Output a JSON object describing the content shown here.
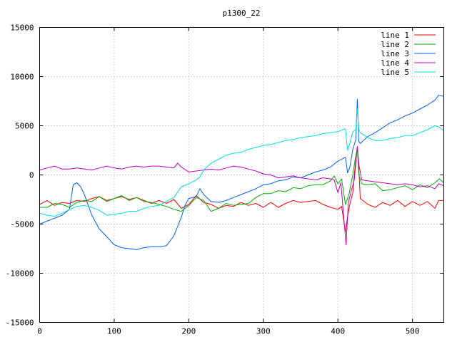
{
  "chart_data": {
    "type": "line",
    "title": "p1300_22",
    "xlabel": "",
    "ylabel": "",
    "xlim": [
      0,
      542
    ],
    "ylim": [
      -15000,
      15000
    ],
    "xticks": [
      0,
      100,
      200,
      300,
      400,
      500
    ],
    "yticks": [
      -15000,
      -10000,
      -5000,
      0,
      5000,
      10000,
      15000
    ],
    "grid": true,
    "legend_position": "top-right",
    "series": [
      {
        "name": "line 1",
        "color": "#ff0000",
        "points": [
          [
            0,
            -3000
          ],
          [
            10,
            -2600
          ],
          [
            20,
            -3100
          ],
          [
            30,
            -2800
          ],
          [
            40,
            -2900
          ],
          [
            50,
            -2600
          ],
          [
            60,
            -2700
          ],
          [
            70,
            -2400
          ],
          [
            80,
            -2200
          ],
          [
            90,
            -2600
          ],
          [
            100,
            -2400
          ],
          [
            110,
            -2200
          ],
          [
            120,
            -2500
          ],
          [
            130,
            -2300
          ],
          [
            140,
            -2600
          ],
          [
            150,
            -2900
          ],
          [
            160,
            -2600
          ],
          [
            170,
            -2900
          ],
          [
            180,
            -2500
          ],
          [
            190,
            -3400
          ],
          [
            200,
            -3000
          ],
          [
            210,
            -2100
          ],
          [
            220,
            -2800
          ],
          [
            230,
            -3000
          ],
          [
            240,
            -3400
          ],
          [
            250,
            -3100
          ],
          [
            260,
            -3200
          ],
          [
            270,
            -2800
          ],
          [
            280,
            -3100
          ],
          [
            290,
            -2900
          ],
          [
            300,
            -3300
          ],
          [
            310,
            -2800
          ],
          [
            320,
            -3300
          ],
          [
            330,
            -2900
          ],
          [
            340,
            -2600
          ],
          [
            350,
            -2800
          ],
          [
            360,
            -2700
          ],
          [
            370,
            -2600
          ],
          [
            380,
            -3000
          ],
          [
            390,
            -3300
          ],
          [
            400,
            -3500
          ],
          [
            405,
            -3200
          ],
          [
            410,
            -5800
          ],
          [
            413,
            -4200
          ],
          [
            416,
            -3000
          ],
          [
            420,
            -1800
          ],
          [
            423,
            800
          ],
          [
            426,
            2800
          ],
          [
            428,
            700
          ],
          [
            430,
            -2400
          ],
          [
            440,
            -3000
          ],
          [
            450,
            -3300
          ],
          [
            460,
            -2800
          ],
          [
            470,
            -3100
          ],
          [
            480,
            -2600
          ],
          [
            490,
            -3200
          ],
          [
            500,
            -2700
          ],
          [
            510,
            -3100
          ],
          [
            520,
            -2700
          ],
          [
            530,
            -3400
          ],
          [
            535,
            -2600
          ],
          [
            542,
            -2600
          ]
        ]
      },
      {
        "name": "line 2",
        "color": "#00b000",
        "points": [
          [
            0,
            -3300
          ],
          [
            10,
            -3300
          ],
          [
            20,
            -2900
          ],
          [
            30,
            -3000
          ],
          [
            40,
            -3300
          ],
          [
            50,
            -2800
          ],
          [
            60,
            -2600
          ],
          [
            70,
            -2700
          ],
          [
            80,
            -2200
          ],
          [
            90,
            -2700
          ],
          [
            100,
            -2400
          ],
          [
            110,
            -2100
          ],
          [
            120,
            -2600
          ],
          [
            130,
            -2300
          ],
          [
            140,
            -2700
          ],
          [
            150,
            -2800
          ],
          [
            160,
            -3000
          ],
          [
            170,
            -3200
          ],
          [
            180,
            -3500
          ],
          [
            190,
            -3700
          ],
          [
            200,
            -3100
          ],
          [
            210,
            -2300
          ],
          [
            220,
            -2600
          ],
          [
            230,
            -3700
          ],
          [
            240,
            -3400
          ],
          [
            250,
            -2900
          ],
          [
            260,
            -3100
          ],
          [
            270,
            -3000
          ],
          [
            280,
            -2900
          ],
          [
            290,
            -2300
          ],
          [
            300,
            -1900
          ],
          [
            310,
            -1900
          ],
          [
            320,
            -1600
          ],
          [
            330,
            -1700
          ],
          [
            340,
            -1300
          ],
          [
            350,
            -1400
          ],
          [
            360,
            -1100
          ],
          [
            370,
            -1000
          ],
          [
            380,
            -1000
          ],
          [
            390,
            -600
          ],
          [
            395,
            -100
          ],
          [
            400,
            -900
          ],
          [
            405,
            -400
          ],
          [
            410,
            -3000
          ],
          [
            415,
            -1900
          ],
          [
            420,
            0
          ],
          [
            423,
            1500
          ],
          [
            426,
            2700
          ],
          [
            428,
            0
          ],
          [
            432,
            -900
          ],
          [
            440,
            -1000
          ],
          [
            450,
            -900
          ],
          [
            460,
            -1600
          ],
          [
            470,
            -1500
          ],
          [
            480,
            -1300
          ],
          [
            490,
            -1100
          ],
          [
            500,
            -1500
          ],
          [
            510,
            -1000
          ],
          [
            520,
            -1300
          ],
          [
            530,
            -800
          ],
          [
            536,
            -400
          ],
          [
            542,
            -800
          ]
        ]
      },
      {
        "name": "line 3",
        "color": "#0060ff",
        "points": [
          [
            0,
            -5000
          ],
          [
            10,
            -4700
          ],
          [
            20,
            -4400
          ],
          [
            30,
            -4100
          ],
          [
            40,
            -3500
          ],
          [
            45,
            -1000
          ],
          [
            50,
            -800
          ],
          [
            55,
            -1200
          ],
          [
            60,
            -2000
          ],
          [
            70,
            -4100
          ],
          [
            80,
            -5500
          ],
          [
            90,
            -6300
          ],
          [
            100,
            -7100
          ],
          [
            110,
            -7400
          ],
          [
            120,
            -7500
          ],
          [
            130,
            -7600
          ],
          [
            140,
            -7400
          ],
          [
            150,
            -7300
          ],
          [
            160,
            -7300
          ],
          [
            170,
            -7200
          ],
          [
            180,
            -6200
          ],
          [
            190,
            -4300
          ],
          [
            195,
            -3100
          ],
          [
            200,
            -2400
          ],
          [
            210,
            -2200
          ],
          [
            215,
            -1400
          ],
          [
            220,
            -2000
          ],
          [
            230,
            -2700
          ],
          [
            240,
            -2800
          ],
          [
            250,
            -2600
          ],
          [
            260,
            -2300
          ],
          [
            270,
            -2000
          ],
          [
            280,
            -1700
          ],
          [
            290,
            -1400
          ],
          [
            300,
            -1000
          ],
          [
            310,
            -900
          ],
          [
            320,
            -600
          ],
          [
            330,
            -500
          ],
          [
            340,
            -200
          ],
          [
            350,
            -300
          ],
          [
            360,
            0
          ],
          [
            370,
            300
          ],
          [
            380,
            500
          ],
          [
            390,
            800
          ],
          [
            400,
            1400
          ],
          [
            410,
            1800
          ],
          [
            413,
            200
          ],
          [
            416,
            800
          ],
          [
            420,
            2600
          ],
          [
            424,
            3600
          ],
          [
            426,
            7700
          ],
          [
            428,
            3400
          ],
          [
            430,
            3200
          ],
          [
            440,
            3900
          ],
          [
            450,
            4300
          ],
          [
            460,
            4800
          ],
          [
            470,
            5300
          ],
          [
            480,
            5600
          ],
          [
            490,
            6000
          ],
          [
            500,
            6300
          ],
          [
            510,
            6700
          ],
          [
            520,
            7100
          ],
          [
            530,
            7600
          ],
          [
            535,
            8100
          ],
          [
            542,
            8000
          ]
        ]
      },
      {
        "name": "line 4",
        "color": "#c000c0",
        "points": [
          [
            0,
            500
          ],
          [
            10,
            700
          ],
          [
            20,
            900
          ],
          [
            30,
            600
          ],
          [
            40,
            600
          ],
          [
            50,
            700
          ],
          [
            60,
            600
          ],
          [
            70,
            500
          ],
          [
            80,
            700
          ],
          [
            90,
            900
          ],
          [
            100,
            700
          ],
          [
            110,
            600
          ],
          [
            120,
            800
          ],
          [
            130,
            900
          ],
          [
            140,
            800
          ],
          [
            150,
            900
          ],
          [
            160,
            900
          ],
          [
            170,
            800
          ],
          [
            180,
            700
          ],
          [
            185,
            1200
          ],
          [
            190,
            800
          ],
          [
            200,
            300
          ],
          [
            210,
            400
          ],
          [
            220,
            500
          ],
          [
            230,
            600
          ],
          [
            240,
            500
          ],
          [
            250,
            700
          ],
          [
            260,
            900
          ],
          [
            270,
            800
          ],
          [
            280,
            600
          ],
          [
            290,
            400
          ],
          [
            300,
            100
          ],
          [
            310,
            0
          ],
          [
            320,
            -300
          ],
          [
            330,
            -200
          ],
          [
            340,
            -100
          ],
          [
            350,
            -300
          ],
          [
            360,
            -400
          ],
          [
            370,
            -500
          ],
          [
            380,
            -300
          ],
          [
            390,
            -400
          ],
          [
            395,
            -500
          ],
          [
            400,
            -1800
          ],
          [
            404,
            -800
          ],
          [
            408,
            -4500
          ],
          [
            411,
            -7100
          ],
          [
            414,
            -2800
          ],
          [
            418,
            -1600
          ],
          [
            422,
            -500
          ],
          [
            426,
            2900
          ],
          [
            428,
            1100
          ],
          [
            432,
            -500
          ],
          [
            440,
            -600
          ],
          [
            450,
            -700
          ],
          [
            460,
            -800
          ],
          [
            470,
            -900
          ],
          [
            480,
            -1000
          ],
          [
            490,
            -900
          ],
          [
            500,
            -1000
          ],
          [
            510,
            -1200
          ],
          [
            520,
            -1100
          ],
          [
            530,
            -1400
          ],
          [
            535,
            -900
          ],
          [
            542,
            -1100
          ]
        ]
      },
      {
        "name": "line 5",
        "color": "#00e0e0",
        "points": [
          [
            0,
            -3900
          ],
          [
            10,
            -4100
          ],
          [
            20,
            -4200
          ],
          [
            30,
            -3900
          ],
          [
            40,
            -3500
          ],
          [
            50,
            -3200
          ],
          [
            60,
            -3100
          ],
          [
            70,
            -3300
          ],
          [
            80,
            -3600
          ],
          [
            90,
            -4100
          ],
          [
            100,
            -4000
          ],
          [
            110,
            -3900
          ],
          [
            120,
            -3700
          ],
          [
            130,
            -3700
          ],
          [
            140,
            -3400
          ],
          [
            150,
            -3200
          ],
          [
            160,
            -3100
          ],
          [
            170,
            -2700
          ],
          [
            180,
            -2300
          ],
          [
            190,
            -1200
          ],
          [
            200,
            -900
          ],
          [
            210,
            -500
          ],
          [
            215,
            -200
          ],
          [
            220,
            500
          ],
          [
            230,
            1200
          ],
          [
            240,
            1600
          ],
          [
            250,
            2000
          ],
          [
            260,
            2200
          ],
          [
            270,
            2300
          ],
          [
            280,
            2600
          ],
          [
            290,
            2800
          ],
          [
            300,
            3000
          ],
          [
            310,
            3100
          ],
          [
            320,
            3300
          ],
          [
            330,
            3500
          ],
          [
            340,
            3600
          ],
          [
            350,
            3800
          ],
          [
            360,
            3900
          ],
          [
            370,
            4000
          ],
          [
            380,
            4200
          ],
          [
            390,
            4300
          ],
          [
            400,
            4400
          ],
          [
            410,
            4700
          ],
          [
            413,
            2500
          ],
          [
            416,
            3200
          ],
          [
            420,
            4400
          ],
          [
            424,
            4600
          ],
          [
            426,
            6700
          ],
          [
            428,
            4600
          ],
          [
            430,
            4300
          ],
          [
            440,
            3800
          ],
          [
            450,
            3500
          ],
          [
            460,
            3500
          ],
          [
            470,
            3700
          ],
          [
            480,
            3800
          ],
          [
            490,
            4000
          ],
          [
            500,
            4000
          ],
          [
            510,
            4300
          ],
          [
            520,
            4600
          ],
          [
            530,
            5000
          ],
          [
            535,
            4900
          ],
          [
            542,
            4500
          ]
        ]
      }
    ]
  }
}
